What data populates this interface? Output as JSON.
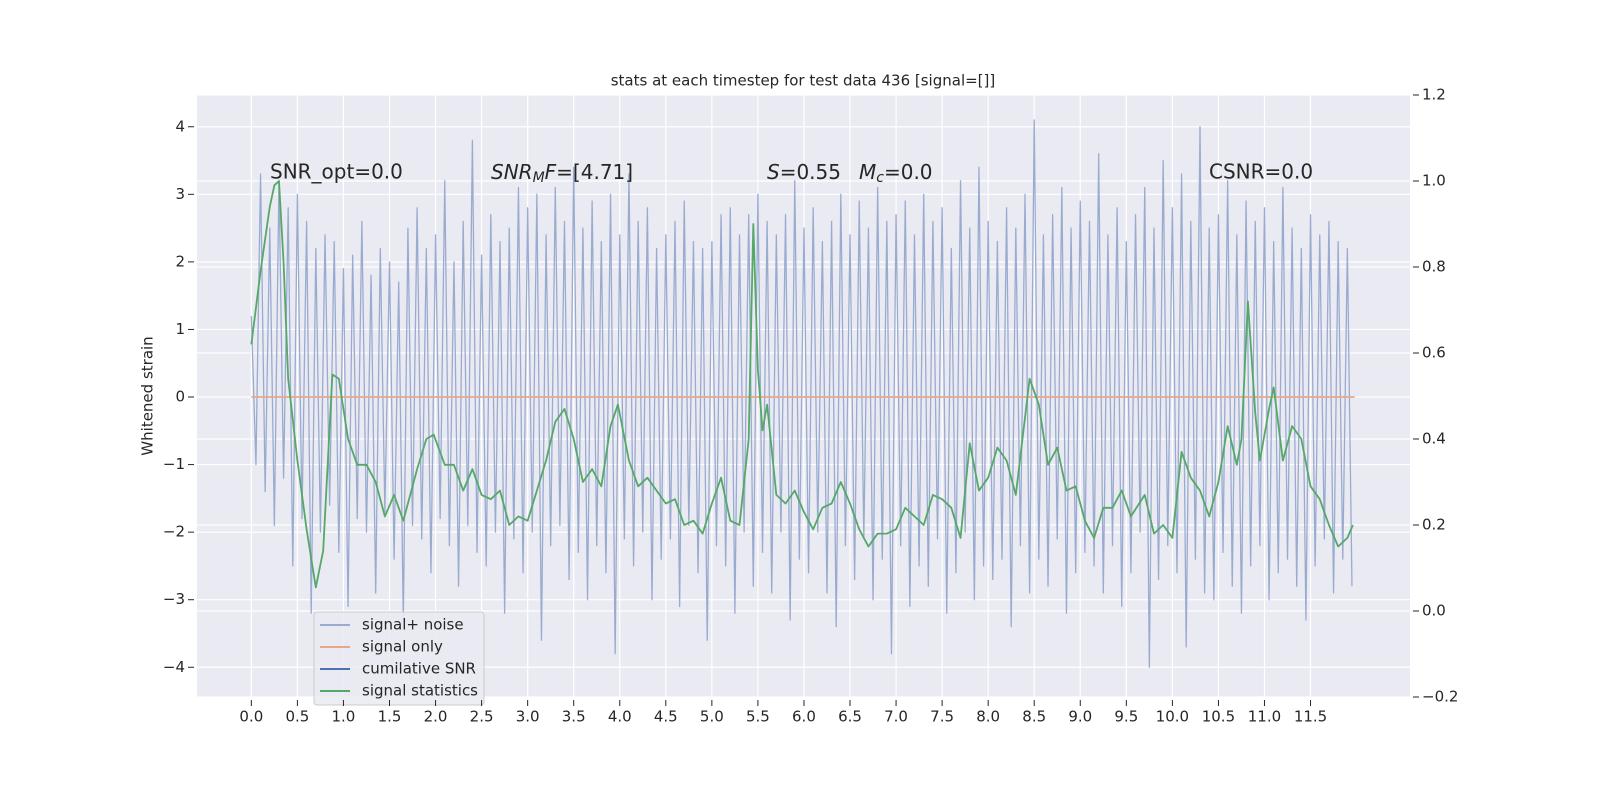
{
  "chart_data": {
    "type": "line",
    "title": "stats at each timestep for test data 436 [signal=[]]",
    "ylabel": "Whitened strain",
    "grid": true,
    "legend": "lower left",
    "annotations": [
      "SNR_opt=0.0",
      [
        "SNR",
        "M",
        "F",
        "=[4.71]"
      ],
      [
        "S",
        "=0.55",
        "M",
        "c",
        "=0.0"
      ],
      "CSNR=0.0"
    ],
    "xlim": [
      -0.59,
      12.58
    ],
    "ylim": [
      -4.44,
      4.47
    ],
    "y2lim": [
      -0.2,
      1.2
    ],
    "xticks": [
      {
        "value": 0,
        "label": "0.0"
      },
      0.5,
      {
        "value": 1,
        "label": "1.0"
      },
      1.5,
      {
        "value": 2,
        "label": "2.0"
      },
      2.5,
      {
        "value": 3,
        "label": "3.0"
      },
      3.5,
      {
        "value": 4,
        "label": "4.0"
      },
      4.5,
      {
        "value": 5,
        "label": "5.0"
      },
      5.5,
      {
        "value": 6,
        "label": "6.0"
      },
      6.5,
      {
        "value": 7,
        "label": "7.0"
      },
      7.5,
      {
        "value": 8,
        "label": "8.0"
      },
      8.5,
      {
        "value": 9,
        "label": "9.0"
      },
      9.5,
      {
        "value": 10,
        "label": "10.0"
      },
      10.5,
      {
        "value": 11,
        "label": "11.0"
      },
      11.5
    ],
    "yticks": [
      {
        "value": -4,
        "label": "−4"
      },
      {
        "value": -3,
        "label": "−3"
      },
      {
        "value": -2,
        "label": "−2"
      },
      {
        "value": -1,
        "label": "−1"
      },
      0,
      1,
      2,
      3,
      4
    ],
    "y2ticks": [
      {
        "value": -0.2,
        "label": "−0.2"
      },
      {
        "value": 0,
        "label": "0.0"
      },
      0.2,
      0.4,
      0.6,
      0.8,
      {
        "value": 1,
        "label": "1.0"
      },
      1.2
    ],
    "series": [
      {
        "name": "signal+ noise",
        "color": "#9aabd0",
        "x": [
          0,
          0.05,
          0.1,
          0.15,
          0.2,
          0.25,
          0.3,
          0.35,
          0.4,
          0.45,
          0.5,
          0.55,
          0.6,
          0.65,
          0.7,
          0.75,
          0.8,
          0.85,
          0.9,
          0.95,
          1,
          1.05,
          1.1,
          1.15,
          1.2,
          1.25,
          1.3,
          1.35,
          1.4,
          1.45,
          1.5,
          1.55,
          1.6,
          1.65,
          1.7,
          1.75,
          1.8,
          1.85,
          1.9,
          1.95,
          2,
          2.05,
          2.1,
          2.15,
          2.2,
          2.25,
          2.3,
          2.35,
          2.4,
          2.45,
          2.5,
          2.55,
          2.6,
          2.65,
          2.7,
          2.75,
          2.8,
          2.85,
          2.9,
          2.95,
          3,
          3.05,
          3.1,
          3.15,
          3.2,
          3.25,
          3.3,
          3.35,
          3.4,
          3.45,
          3.5,
          3.55,
          3.6,
          3.65,
          3.7,
          3.75,
          3.8,
          3.85,
          3.9,
          3.95,
          4,
          4.05,
          4.1,
          4.15,
          4.2,
          4.25,
          4.3,
          4.35,
          4.4,
          4.45,
          4.5,
          4.55,
          4.6,
          4.65,
          4.7,
          4.75,
          4.8,
          4.85,
          4.9,
          4.95,
          5,
          5.05,
          5.1,
          5.15,
          5.2,
          5.25,
          5.3,
          5.35,
          5.4,
          5.45,
          5.5,
          5.55,
          5.6,
          5.65,
          5.7,
          5.75,
          5.8,
          5.85,
          5.9,
          5.95,
          6,
          6.05,
          6.1,
          6.15,
          6.2,
          6.25,
          6.3,
          6.35,
          6.4,
          6.45,
          6.5,
          6.55,
          6.6,
          6.65,
          6.7,
          6.75,
          6.8,
          6.85,
          6.9,
          6.95,
          7,
          7.05,
          7.1,
          7.15,
          7.2,
          7.25,
          7.3,
          7.35,
          7.4,
          7.45,
          7.5,
          7.55,
          7.6,
          7.65,
          7.7,
          7.75,
          7.8,
          7.85,
          7.9,
          7.95,
          8,
          8.05,
          8.1,
          8.15,
          8.2,
          8.25,
          8.3,
          8.35,
          8.4,
          8.45,
          8.5,
          8.55,
          8.6,
          8.65,
          8.7,
          8.75,
          8.8,
          8.85,
          8.9,
          8.95,
          9,
          9.05,
          9.1,
          9.15,
          9.2,
          9.25,
          9.3,
          9.35,
          9.4,
          9.45,
          9.5,
          9.55,
          9.6,
          9.65,
          9.7,
          9.75,
          9.8,
          9.85,
          9.9,
          9.95,
          10,
          10.05,
          10.1,
          10.15,
          10.2,
          10.25,
          10.3,
          10.35,
          10.4,
          10.45,
          10.5,
          10.55,
          10.6,
          10.65,
          10.7,
          10.75,
          10.8,
          10.85,
          10.9,
          10.95,
          11,
          11.05,
          11.1,
          11.15,
          11.2,
          11.25,
          11.3,
          11.35,
          11.4,
          11.45,
          11.5,
          11.55,
          11.6,
          11.65,
          11.7,
          11.75,
          11.8,
          11.85,
          11.9,
          11.95
        ],
        "values": [
          1.2,
          -1.0,
          3.3,
          -1.4,
          2.5,
          -1.9,
          3.2,
          -1.2,
          2.8,
          -2.5,
          3.0,
          -1.8,
          2.6,
          -3.2,
          2.2,
          -2.0,
          2.4,
          -1.6,
          2.3,
          -2.3,
          1.9,
          -3.1,
          2.1,
          -1.8,
          2.6,
          -2.0,
          1.8,
          -2.9,
          2.2,
          -1.7,
          2.0,
          -2.4,
          1.7,
          -3.3,
          2.5,
          -1.9,
          2.8,
          -2.1,
          2.2,
          -2.6,
          2.4,
          -1.8,
          3.2,
          -2.2,
          2.0,
          -2.8,
          2.6,
          -1.9,
          3.8,
          -2.3,
          2.1,
          -2.5,
          2.7,
          -2.0,
          2.3,
          -3.2,
          2.5,
          -2.1,
          3.1,
          -2.6,
          2.8,
          -2.0,
          3.0,
          -3.6,
          2.4,
          -2.2,
          3.1,
          -1.9,
          2.6,
          -2.7,
          3.4,
          -2.3,
          2.5,
          -3.0,
          2.9,
          -2.2,
          2.3,
          -2.6,
          3.0,
          -3.8,
          2.4,
          -2.1,
          3.3,
          -2.5,
          2.6,
          -2.0,
          2.8,
          -3.0,
          2.2,
          -2.4,
          2.4,
          -2.1,
          2.6,
          -3.1,
          2.9,
          -1.9,
          2.3,
          -2.6,
          2.2,
          -3.6,
          2.3,
          -2.2,
          2.7,
          -2.5,
          2.8,
          -3.2,
          2.4,
          -2.0,
          2.7,
          -2.8,
          3.0,
          -2.3,
          2.6,
          -2.9,
          2.4,
          -2.0,
          2.7,
          -3.3,
          3.2,
          -2.4,
          2.5,
          -2.6,
          2.8,
          -2.0,
          2.3,
          -2.9,
          2.6,
          -3.4,
          3.0,
          -2.2,
          2.4,
          -2.7,
          2.9,
          -2.1,
          2.5,
          -3.0,
          3.1,
          -2.4,
          2.6,
          -3.8,
          2.7,
          -2.2,
          2.9,
          -3.1,
          2.4,
          -2.5,
          3.0,
          -2.8,
          2.6,
          -2.1,
          2.8,
          -3.2,
          2.2,
          -2.6,
          3.2,
          -2.0,
          2.5,
          -3.0,
          3.4,
          -2.5,
          2.6,
          -2.7,
          2.3,
          -2.4,
          2.8,
          -3.4,
          2.5,
          -2.2,
          3.0,
          -2.9,
          4.1,
          -2.4,
          2.4,
          -2.8,
          2.7,
          -2.1,
          3.1,
          -3.2,
          2.5,
          -2.6,
          2.9,
          -2.3,
          2.6,
          -2.5,
          3.6,
          -2.9,
          2.4,
          -2.2,
          2.8,
          -3.1,
          2.3,
          -2.6,
          2.7,
          -2.0,
          3.1,
          -4.0,
          2.5,
          -2.7,
          3.5,
          -2.2,
          2.8,
          -2.6,
          3.3,
          -3.7,
          2.6,
          -2.4,
          4.0,
          -2.9,
          2.5,
          -3.0,
          2.7,
          -2.3,
          3.2,
          -2.8,
          2.4,
          -3.2,
          2.9,
          -2.5,
          2.6,
          -2.2,
          2.8,
          -3.0,
          2.3,
          -2.6,
          3.1,
          -2.4,
          2.5,
          -2.8,
          2.2,
          -3.3,
          2.7,
          -2.5,
          2.4,
          -2.1,
          2.6,
          -2.9,
          2.3,
          -2.4,
          2.2,
          -2.8
        ]
      },
      {
        "name": "signal only",
        "color": "#e8a78a",
        "x": [
          0,
          11.98
        ],
        "values": [
          0,
          0
        ]
      },
      {
        "name": "cumilative SNR",
        "color": "#4c72b0",
        "x": [],
        "values": []
      },
      {
        "name": "signal statistics",
        "color": "#55a868",
        "axis": "y2",
        "x": [
          0,
          0.1,
          0.2,
          0.25,
          0.3,
          0.35,
          0.4,
          0.5,
          0.6,
          0.7,
          0.78,
          0.88,
          0.95,
          1.05,
          1.15,
          1.25,
          1.35,
          1.45,
          1.55,
          1.65,
          1.8,
          1.9,
          1.98,
          2.1,
          2.2,
          2.3,
          2.4,
          2.5,
          2.6,
          2.7,
          2.8,
          2.9,
          3,
          3.1,
          3.2,
          3.3,
          3.4,
          3.5,
          3.6,
          3.7,
          3.8,
          3.9,
          3.98,
          4.1,
          4.2,
          4.3,
          4.5,
          4.6,
          4.7,
          4.8,
          4.9,
          5,
          5.1,
          5.2,
          5.3,
          5.4,
          5.45,
          5.5,
          5.55,
          5.6,
          5.7,
          5.8,
          5.9,
          6,
          6.1,
          6.2,
          6.3,
          6.4,
          6.5,
          6.6,
          6.7,
          6.8,
          6.9,
          7,
          7.1,
          7.2,
          7.3,
          7.4,
          7.5,
          7.6,
          7.7,
          7.8,
          7.9,
          8,
          8.1,
          8.2,
          8.3,
          8.45,
          8.55,
          8.65,
          8.75,
          8.85,
          8.95,
          9.05,
          9.15,
          9.25,
          9.35,
          9.45,
          9.55,
          9.7,
          9.8,
          9.9,
          10,
          10.1,
          10.2,
          10.3,
          10.4,
          10.5,
          10.6,
          10.7,
          10.75,
          10.82,
          10.9,
          10.95,
          11.05,
          11.1,
          11.2,
          11.3,
          11.4,
          11.5,
          11.6,
          11.7,
          11.8,
          11.9,
          11.96
        ],
        "values": [
          0.62,
          0.79,
          0.94,
          0.99,
          1.0,
          0.81,
          0.54,
          0.35,
          0.19,
          0.055,
          0.14,
          0.55,
          0.54,
          0.4,
          0.34,
          0.34,
          0.3,
          0.22,
          0.27,
          0.21,
          0.33,
          0.4,
          0.41,
          0.34,
          0.34,
          0.28,
          0.33,
          0.27,
          0.26,
          0.28,
          0.2,
          0.22,
          0.21,
          0.28,
          0.35,
          0.44,
          0.47,
          0.4,
          0.3,
          0.33,
          0.29,
          0.43,
          0.48,
          0.35,
          0.29,
          0.31,
          0.25,
          0.26,
          0.2,
          0.21,
          0.18,
          0.25,
          0.31,
          0.21,
          0.2,
          0.4,
          0.9,
          0.56,
          0.42,
          0.48,
          0.27,
          0.25,
          0.28,
          0.23,
          0.19,
          0.24,
          0.25,
          0.3,
          0.25,
          0.19,
          0.15,
          0.18,
          0.18,
          0.19,
          0.24,
          0.22,
          0.2,
          0.27,
          0.26,
          0.24,
          0.17,
          0.39,
          0.28,
          0.31,
          0.38,
          0.35,
          0.27,
          0.54,
          0.48,
          0.34,
          0.38,
          0.28,
          0.29,
          0.21,
          0.17,
          0.24,
          0.24,
          0.28,
          0.22,
          0.27,
          0.18,
          0.2,
          0.17,
          0.37,
          0.31,
          0.28,
          0.22,
          0.3,
          0.43,
          0.34,
          0.4,
          0.72,
          0.46,
          0.35,
          0.47,
          0.52,
          0.35,
          0.43,
          0.4,
          0.29,
          0.26,
          0.2,
          0.15,
          0.17,
          0.2
        ]
      }
    ]
  }
}
